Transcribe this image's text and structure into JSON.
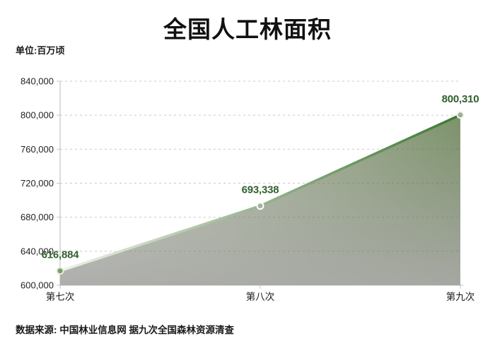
{
  "page": {
    "title": "全国人工林面积",
    "unit_label": "单位:百万顷",
    "source_note": "数据来源: 中国林业信息网  据九次全国森林资源清查"
  },
  "colors": {
    "title_text": "#111111",
    "value_label_green": "#31602c",
    "line_gradient_start": "#eef2e8",
    "line_gradient_end": "#3c7832",
    "area_gradient_left": "#cfd4c8",
    "area_gradient_right": "#6e8659",
    "area_bottom_gray": "#aaaaa8",
    "gridline": "#c9c9c9",
    "axis": "#c6c6c6",
    "tick_text": "#222222",
    "markers": [
      {
        "fill": "#76a163",
        "stroke": "#e7ebe0"
      },
      {
        "fill": "#a9b2a0",
        "stroke": "#ffffff"
      },
      {
        "fill": "#9fae93",
        "stroke": "#f2f4ee"
      }
    ]
  },
  "chart_data": {
    "type": "area",
    "title": "全国人工林面积",
    "ylabel": "单位:百万顷",
    "categories": [
      "第七次",
      "第八次",
      "第九次"
    ],
    "values": [
      616884,
      693338,
      800310
    ],
    "value_labels": [
      "616,884",
      "693,338",
      "800,310"
    ],
    "ylim": [
      600000,
      840000
    ],
    "ytick_step": 40000,
    "ytick_labels": [
      "600,000",
      "640,000",
      "680,000",
      "720,000",
      "760,000",
      "800,000",
      "840,000"
    ],
    "grid": "dashed-horizontal",
    "legend": "none",
    "source": "数据来源: 中国林业信息网  据九次全国森林资源清查"
  }
}
